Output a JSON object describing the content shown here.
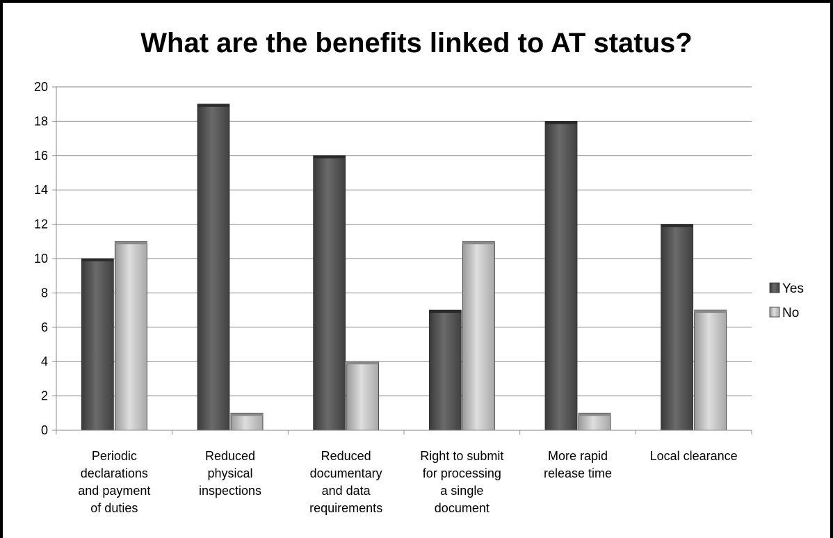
{
  "chart_data": {
    "type": "bar",
    "title": "What are the benefits linked to AT status?",
    "categories": [
      [
        "Periodic",
        "declarations",
        "and payment",
        "of duties"
      ],
      [
        "Reduced",
        "physical",
        "inspections"
      ],
      [
        "Reduced",
        "documentary",
        "and data",
        "requirements"
      ],
      [
        "Right to submit",
        "for processing",
        "a single",
        "document"
      ],
      [
        "More rapid",
        "release time"
      ],
      [
        "Local clearance"
      ]
    ],
    "series": [
      {
        "name": "Yes",
        "values": [
          10,
          19,
          16,
          7,
          18,
          12
        ],
        "color": "#555555"
      },
      {
        "name": "No",
        "values": [
          11,
          1,
          4,
          11,
          1,
          7
        ],
        "color": "#b8b8b8"
      }
    ],
    "yticks": [
      "0",
      "2",
      "4",
      "6",
      "8",
      "10",
      "12",
      "14",
      "16",
      "18",
      "20"
    ],
    "ylim": [
      0,
      20
    ],
    "grid": true,
    "legend": "right"
  }
}
